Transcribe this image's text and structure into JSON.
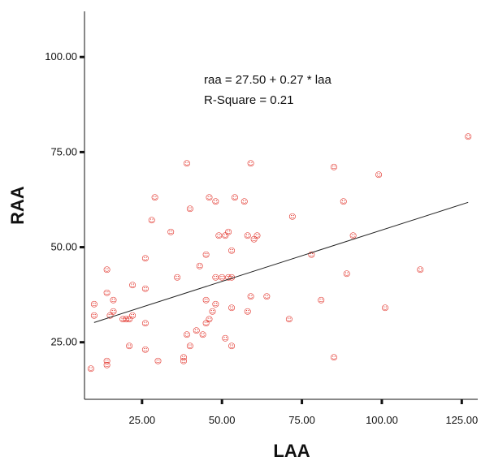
{
  "chart_data": {
    "type": "scatter",
    "xlabel": "LAA",
    "ylabel": "RAA",
    "xlim": [
      7,
      130
    ],
    "ylim": [
      10,
      112
    ],
    "x_ticks": [
      25,
      50,
      75,
      100,
      125
    ],
    "x_tick_labels": [
      "25.00",
      "50.00",
      "75.00",
      "100.00",
      "125.00"
    ],
    "y_ticks": [
      25,
      50,
      75,
      100
    ],
    "y_tick_labels": [
      "25.00",
      "50.00",
      "75.00",
      "100.00"
    ],
    "grid": false,
    "marker_glyph": "☺",
    "point_color": "#e0281f",
    "line_color": "#222222",
    "annotations": [
      "raa = 27.50 + 0.27 * laa",
      "R-Square = 0.21"
    ],
    "fit_line": {
      "intercept": 27.5,
      "slope": 0.27,
      "x_range": [
        10,
        127
      ]
    },
    "points": [
      [
        9,
        18
      ],
      [
        10,
        35
      ],
      [
        10,
        32
      ],
      [
        14,
        44
      ],
      [
        14,
        38
      ],
      [
        14,
        20
      ],
      [
        14,
        19
      ],
      [
        16,
        36
      ],
      [
        16,
        33
      ],
      [
        15,
        32
      ],
      [
        19,
        31
      ],
      [
        20,
        31
      ],
      [
        21,
        24
      ],
      [
        21,
        31
      ],
      [
        22,
        32
      ],
      [
        22,
        40
      ],
      [
        26,
        39
      ],
      [
        26,
        47
      ],
      [
        26,
        30
      ],
      [
        26,
        23
      ],
      [
        28,
        57
      ],
      [
        29,
        63
      ],
      [
        30,
        20
      ],
      [
        34,
        54
      ],
      [
        36,
        42
      ],
      [
        38,
        20
      ],
      [
        38,
        21
      ],
      [
        39,
        27
      ],
      [
        39,
        72
      ],
      [
        40,
        60
      ],
      [
        40,
        24
      ],
      [
        42,
        28
      ],
      [
        43,
        45
      ],
      [
        44,
        27
      ],
      [
        45,
        30
      ],
      [
        45,
        48
      ],
      [
        45,
        36
      ],
      [
        46,
        31
      ],
      [
        46,
        63
      ],
      [
        47,
        33
      ],
      [
        48,
        35
      ],
      [
        48,
        62
      ],
      [
        48,
        42
      ],
      [
        49,
        53
      ],
      [
        50,
        42
      ],
      [
        51,
        53
      ],
      [
        51,
        26
      ],
      [
        52,
        54
      ],
      [
        52,
        42
      ],
      [
        53,
        49
      ],
      [
        53,
        34
      ],
      [
        53,
        24
      ],
      [
        53,
        42
      ],
      [
        54,
        63
      ],
      [
        57,
        62
      ],
      [
        58,
        33
      ],
      [
        58,
        53
      ],
      [
        59,
        37
      ],
      [
        59,
        72
      ],
      [
        60,
        52
      ],
      [
        61,
        53
      ],
      [
        64,
        37
      ],
      [
        71,
        31
      ],
      [
        72,
        58
      ],
      [
        78,
        48
      ],
      [
        81,
        36
      ],
      [
        85,
        71
      ],
      [
        85,
        21
      ],
      [
        88,
        62
      ],
      [
        89,
        43
      ],
      [
        91,
        53
      ],
      [
        99,
        69
      ],
      [
        101,
        34
      ],
      [
        112,
        44
      ],
      [
        127,
        79
      ]
    ]
  }
}
